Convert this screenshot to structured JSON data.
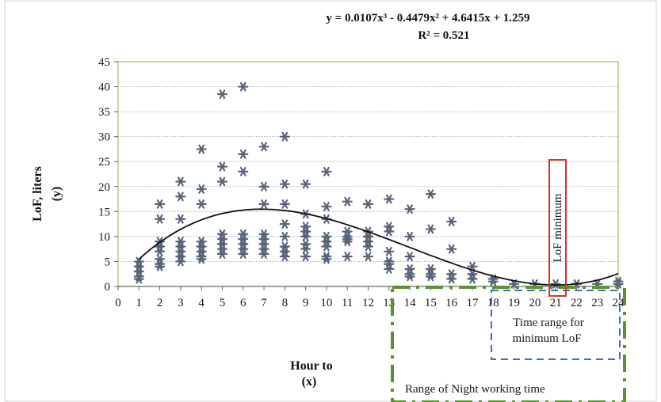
{
  "chart_data": {
    "type": "scatter",
    "equation": "y = 0.0107x³ - 0.4479x² + 4.6415x + 1.259",
    "r_squared": "R² = 0.521",
    "ylabel_line1": "LoF, liters",
    "ylabel_line2": "(y)",
    "xlabel_line1": "Hour to",
    "xlabel_line2": "(x)",
    "xlim": [
      0,
      24
    ],
    "ylim": [
      0,
      45
    ],
    "x_ticks": [
      "0",
      "1",
      "2",
      "3",
      "4",
      "5",
      "6",
      "7",
      "8",
      "9",
      "10",
      "11",
      "12",
      "13",
      "14",
      "15",
      "16",
      "17",
      "18",
      "19",
      "20",
      "21",
      "22",
      "23",
      "24"
    ],
    "y_ticks": [
      "0",
      "5",
      "10",
      "15",
      "20",
      "25",
      "30",
      "35",
      "40",
      "45"
    ],
    "grid": "horizontal",
    "trendline": {
      "type": "polynomial",
      "coefficients": [
        0.0107,
        -0.4479,
        4.6415,
        1.259
      ]
    },
    "points": [
      [
        1,
        5
      ],
      [
        1,
        4
      ],
      [
        1,
        3
      ],
      [
        1,
        2
      ],
      [
        1,
        1.5
      ],
      [
        2,
        16.5
      ],
      [
        2,
        13.5
      ],
      [
        2,
        9
      ],
      [
        2,
        8
      ],
      [
        2,
        7
      ],
      [
        2,
        5.5
      ],
      [
        2,
        4.5
      ],
      [
        2,
        4
      ],
      [
        3,
        21
      ],
      [
        3,
        18
      ],
      [
        3,
        13.5
      ],
      [
        3,
        9
      ],
      [
        3,
        8
      ],
      [
        3,
        7
      ],
      [
        3,
        6
      ],
      [
        3,
        5
      ],
      [
        4,
        27.5
      ],
      [
        4,
        19.5
      ],
      [
        4,
        16.5
      ],
      [
        4,
        9
      ],
      [
        4,
        8
      ],
      [
        4,
        7
      ],
      [
        4,
        6
      ],
      [
        4,
        5.5
      ],
      [
        5,
        38.5
      ],
      [
        5,
        24
      ],
      [
        5,
        21
      ],
      [
        5,
        10.5
      ],
      [
        5,
        9.5
      ],
      [
        5,
        8.5
      ],
      [
        5,
        7.5
      ],
      [
        5,
        6.5
      ],
      [
        6,
        40
      ],
      [
        6,
        26.5
      ],
      [
        6,
        23
      ],
      [
        6,
        10.5
      ],
      [
        6,
        9.5
      ],
      [
        6,
        8.5
      ],
      [
        6,
        7.5
      ],
      [
        6,
        6.5
      ],
      [
        7,
        28
      ],
      [
        7,
        20
      ],
      [
        7,
        16.5
      ],
      [
        7,
        10.5
      ],
      [
        7,
        9.5
      ],
      [
        7,
        8.5
      ],
      [
        7,
        7.5
      ],
      [
        7,
        6.5
      ],
      [
        8,
        30
      ],
      [
        8,
        20.5
      ],
      [
        8,
        16.5
      ],
      [
        8,
        12.5
      ],
      [
        8,
        10
      ],
      [
        8,
        8
      ],
      [
        8,
        7
      ],
      [
        8,
        6
      ],
      [
        9,
        20.5
      ],
      [
        9,
        14.5
      ],
      [
        9,
        12
      ],
      [
        9,
        11
      ],
      [
        9,
        10
      ],
      [
        9,
        8.5
      ],
      [
        9,
        7.5
      ],
      [
        9,
        6
      ],
      [
        10,
        23
      ],
      [
        10,
        16
      ],
      [
        10,
        13.5
      ],
      [
        10,
        10
      ],
      [
        10,
        9
      ],
      [
        10,
        8
      ],
      [
        10,
        6
      ],
      [
        10,
        5.5
      ],
      [
        11,
        17
      ],
      [
        11,
        11
      ],
      [
        11,
        10
      ],
      [
        11,
        9.5
      ],
      [
        11,
        9
      ],
      [
        11,
        6
      ],
      [
        12,
        16.5
      ],
      [
        12,
        11
      ],
      [
        12,
        10
      ],
      [
        12,
        9
      ],
      [
        12,
        8
      ],
      [
        12,
        6
      ],
      [
        13,
        17.5
      ],
      [
        13,
        12
      ],
      [
        13,
        11
      ],
      [
        13,
        7
      ],
      [
        13,
        5
      ],
      [
        13,
        4.5
      ],
      [
        13,
        3.5
      ],
      [
        14,
        15.5
      ],
      [
        14,
        10
      ],
      [
        14,
        6
      ],
      [
        14,
        3.5
      ],
      [
        14,
        2.5
      ],
      [
        14,
        2
      ],
      [
        15,
        18.5
      ],
      [
        15,
        11.5
      ],
      [
        15,
        3.5
      ],
      [
        15,
        2.5
      ],
      [
        15,
        2
      ],
      [
        16,
        13
      ],
      [
        16,
        7.5
      ],
      [
        16,
        2.5
      ],
      [
        16,
        1.5
      ],
      [
        17,
        4
      ],
      [
        17,
        2.5
      ],
      [
        17,
        1.5
      ],
      [
        18,
        1.5
      ],
      [
        18,
        1
      ],
      [
        19,
        0.5
      ],
      [
        20,
        0.5
      ],
      [
        21,
        0.5
      ],
      [
        22,
        0.5
      ],
      [
        23,
        0.5
      ],
      [
        24,
        1
      ],
      [
        24,
        0.5
      ]
    ],
    "annotations": {
      "lof_minimum": "LoF minimum",
      "time_range_line1": "Time range for",
      "time_range_line2": "minimum LoF",
      "night_range": "Range of Night working time"
    },
    "colors": {
      "marker": "#5a6478",
      "trendline": "#111111",
      "plot_border": "#9bbf6a",
      "gridline": "#a9b8cf",
      "lof_box": "#d9342b",
      "time_range_box": "#3f6fb5",
      "night_range_box": "#5d8f33"
    }
  }
}
